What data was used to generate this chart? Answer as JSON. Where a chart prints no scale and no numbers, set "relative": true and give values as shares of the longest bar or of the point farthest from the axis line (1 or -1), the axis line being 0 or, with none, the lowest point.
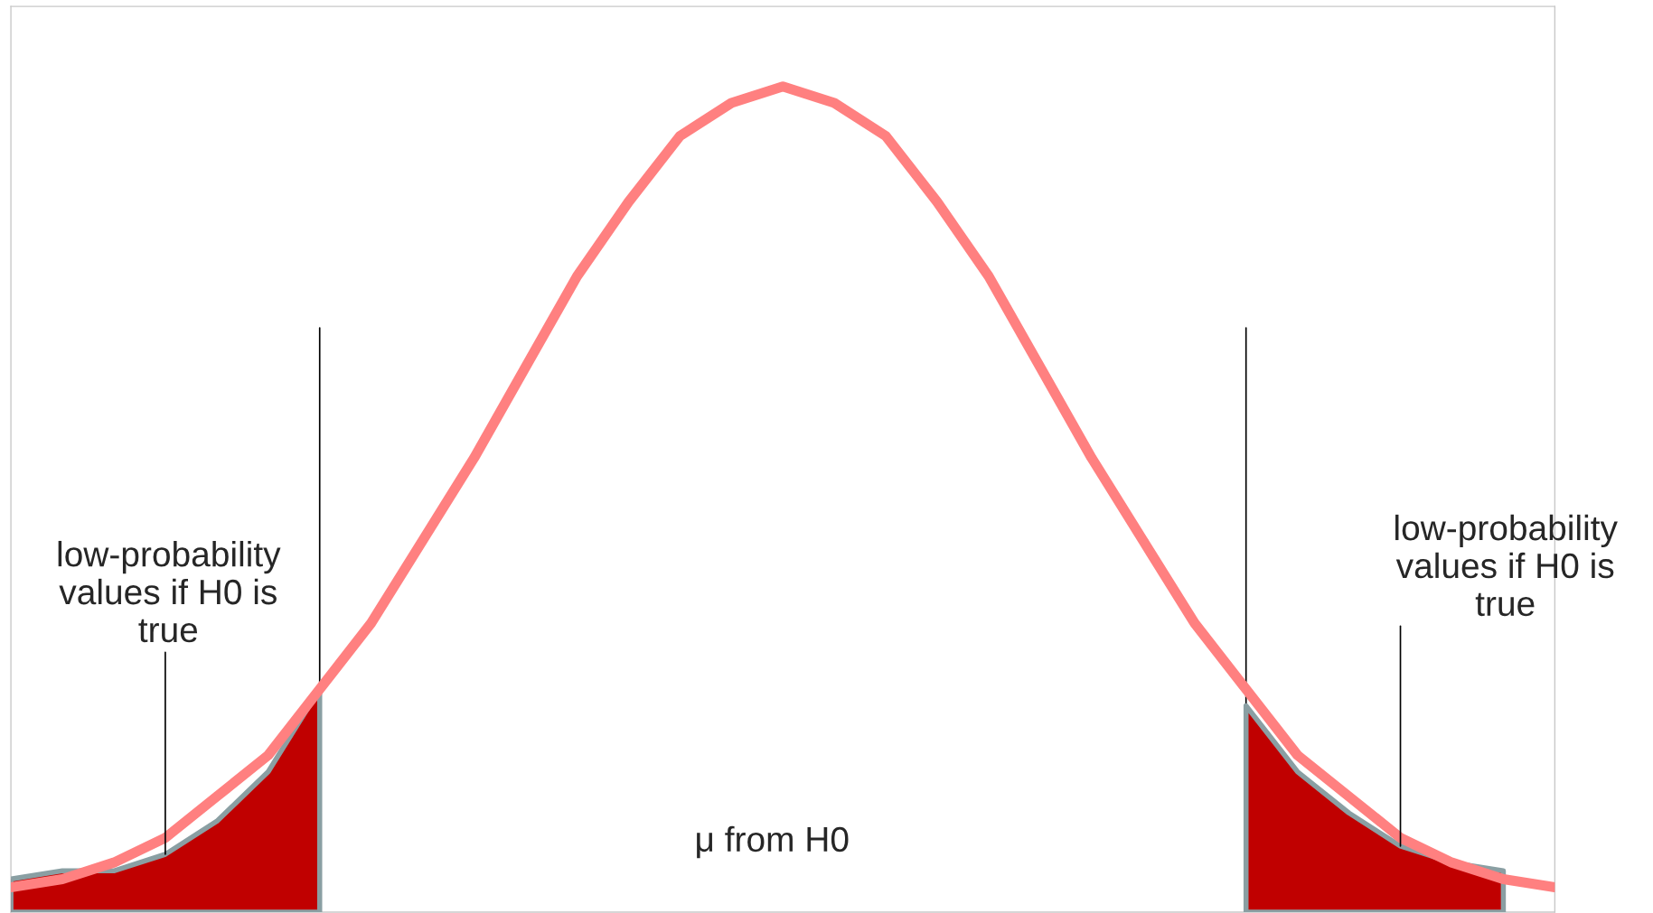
{
  "chart_data": {
    "type": "line",
    "relative": true,
    "legend": false,
    "grid": false,
    "categories": [
      null,
      null,
      null,
      null,
      null,
      null,
      null,
      null,
      null,
      null,
      null,
      null,
      null,
      null,
      null,
      null,
      null,
      null,
      null,
      null,
      null,
      null,
      null,
      null,
      null,
      null,
      null,
      null,
      null,
      null,
      null
    ],
    "series": [
      {
        "color": "#ff8080",
        "values": [
          0.03,
          0.04,
          0.06,
          0.09,
          0.14,
          0.19,
          0.27,
          0.35,
          0.45,
          0.55,
          0.66,
          0.77,
          0.86,
          0.94,
          0.98,
          1,
          0.98,
          0.94,
          0.86,
          0.77,
          0.66,
          0.55,
          0.45,
          0.35,
          0.27,
          0.19,
          0.14,
          0.09,
          0.06,
          0.04,
          0.03
        ]
      },
      {
        "type": "area",
        "color": "#c00000",
        "values": [
          0.04,
          0.05,
          0.05,
          0.07,
          0.11,
          0.17,
          0.27,
          null,
          null,
          null,
          null,
          null,
          null,
          null,
          null,
          null,
          null,
          null,
          null,
          null,
          null,
          null,
          null,
          null,
          null,
          null,
          null,
          null,
          null,
          null,
          null
        ]
      },
      {
        "type": "area",
        "color": "#c00000",
        "values": [
          null,
          null,
          null,
          null,
          null,
          null,
          null,
          null,
          null,
          null,
          null,
          null,
          null,
          null,
          null,
          null,
          null,
          null,
          null,
          null,
          null,
          null,
          null,
          null,
          0.25,
          0.17,
          0.12,
          0.08,
          0.06,
          0.05,
          null
        ]
      }
    ],
    "annotations": [
      "low-probability\nvalues if H0 is\ntrue",
      "low-probability\nvalues if H0 is\ntrue",
      "μ from H0"
    ]
  }
}
